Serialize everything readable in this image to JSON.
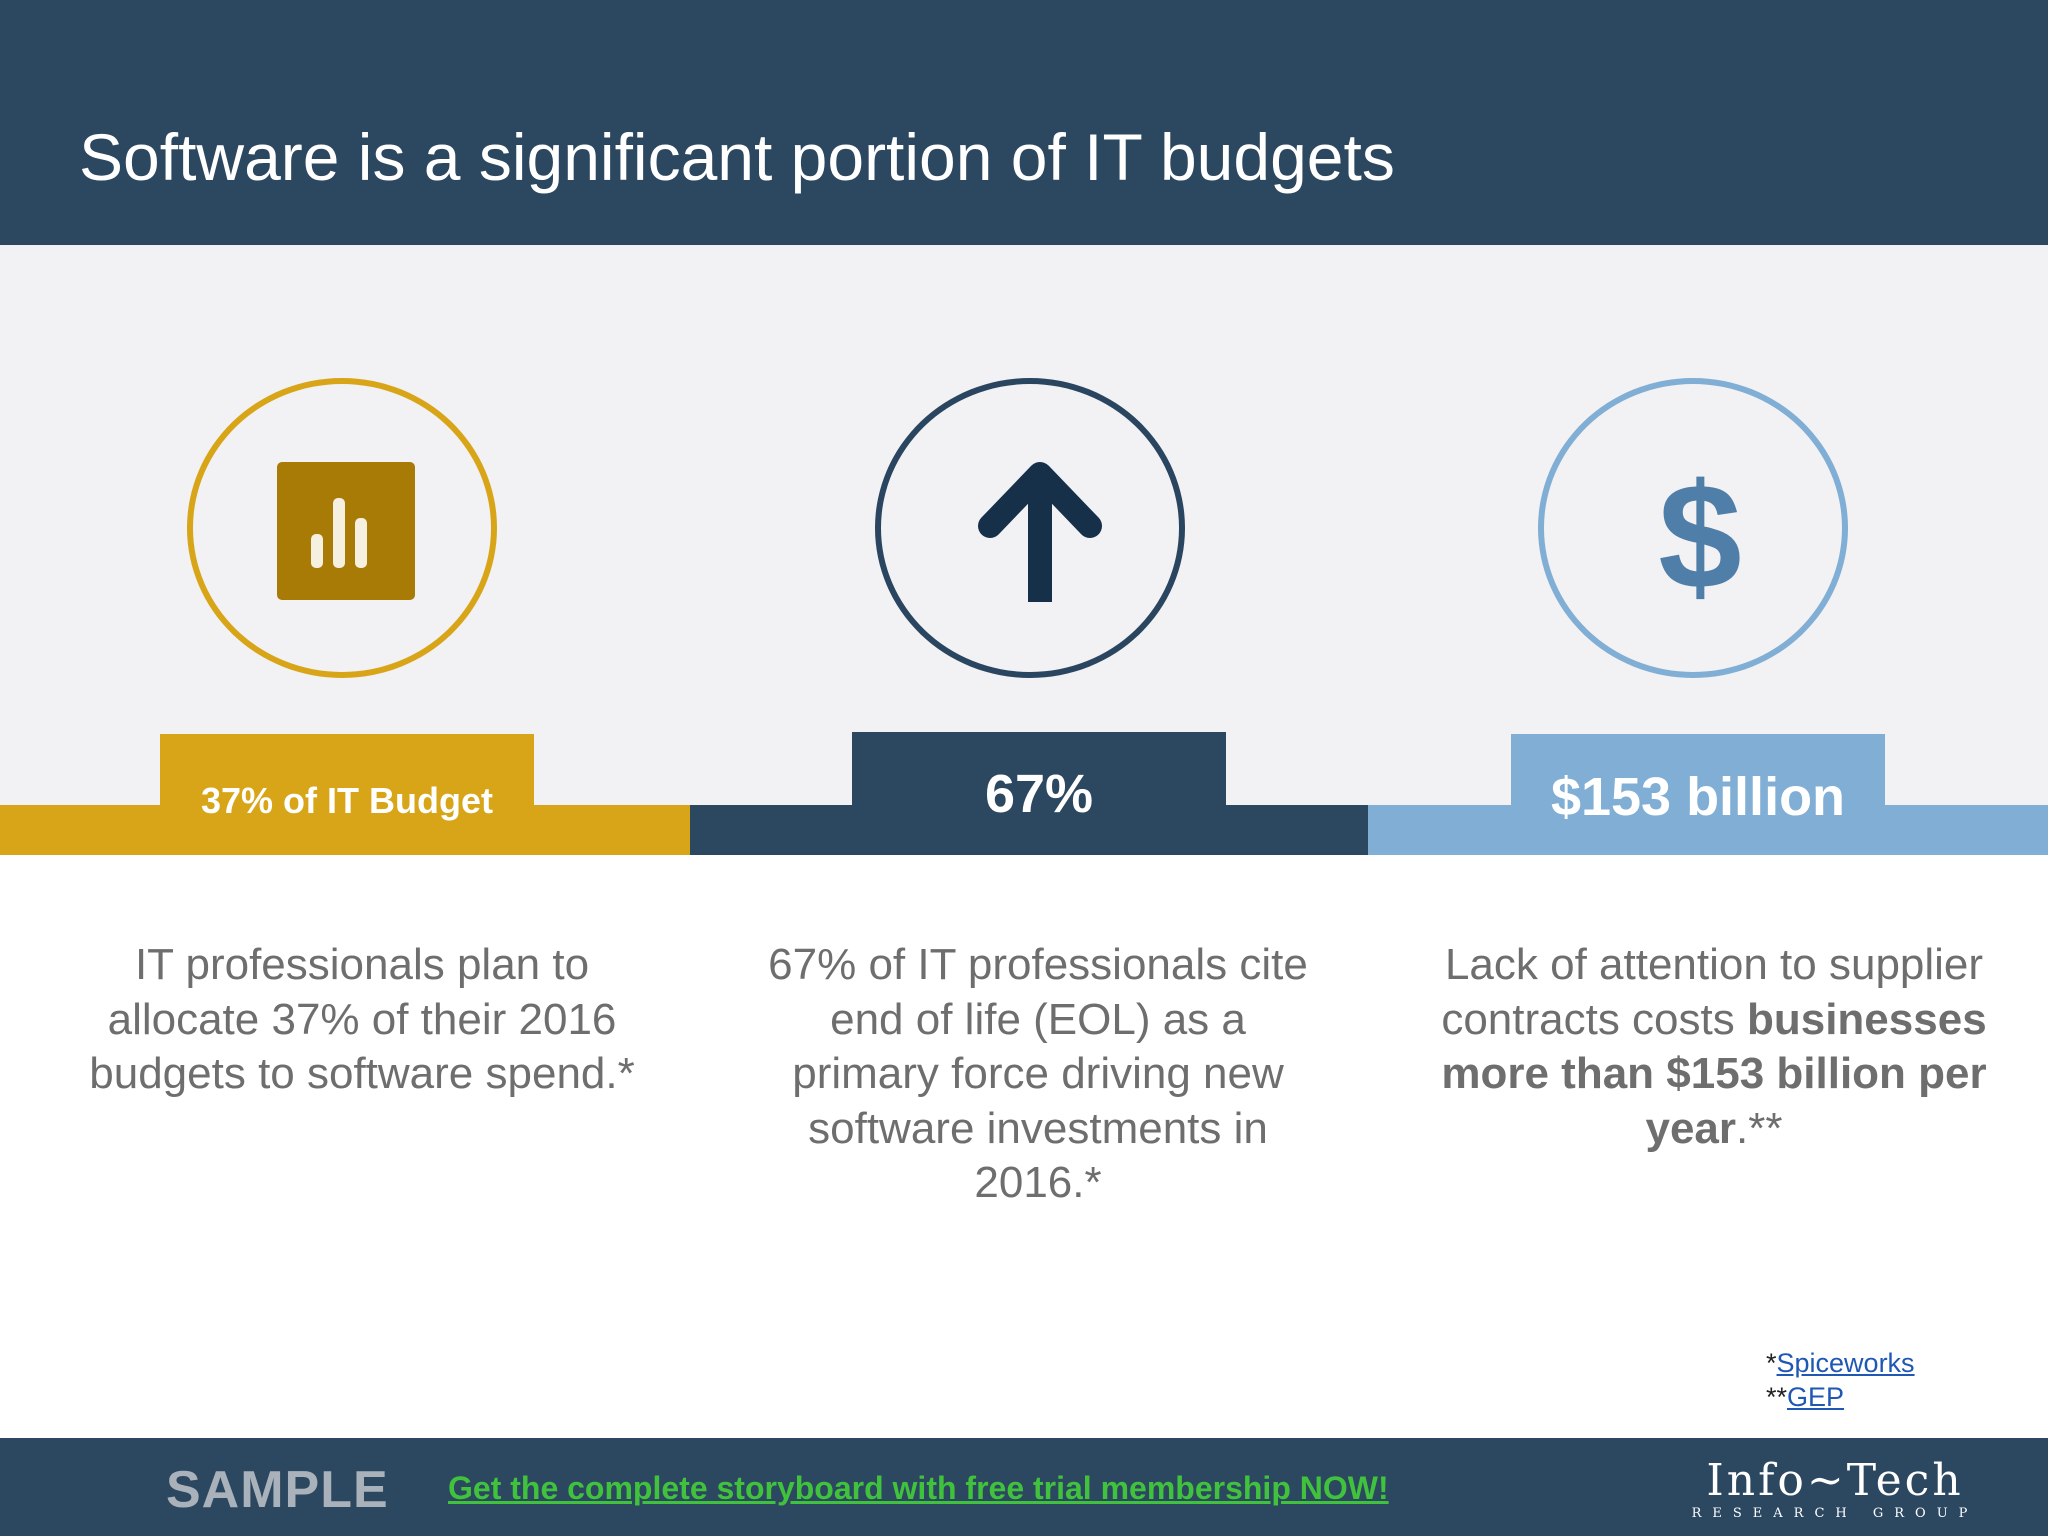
{
  "slide": {
    "title": "Software is a significant portion of IT budgets"
  },
  "stats": [
    {
      "icon": "bar-chart-icon",
      "label": "37% of IT Budget",
      "color": "#d8a518",
      "description": "IT professionals plan to allocate 37% of their 2016 budgets to software spend.*"
    },
    {
      "icon": "arrow-up-icon",
      "label": "67%",
      "color": "#2c4760",
      "description": "67% of IT professionals cite end of life (EOL) as a primary force driving new software investments in 2016.*"
    },
    {
      "icon": "dollar-icon",
      "label": "$153 billion",
      "color": "#80aed4",
      "description_plain": "Lack of attention to supplier contracts costs",
      "description_bold": "businesses more than $153 billion per year",
      "description_tail": ".**"
    }
  ],
  "references": [
    {
      "prefix": "*",
      "link": "Spiceworks"
    },
    {
      "prefix": "**",
      "link": "GEP"
    }
  ],
  "footer": {
    "sample": "SAMPLE",
    "cta": "Get the complete storyboard with free trial membership NOW!",
    "logo_main": "Info~Tech",
    "logo_sub": "RESEARCH GROUP"
  },
  "colors": {
    "header": "#2c4760",
    "band": "#f2f1f3",
    "gold": "#d8a518",
    "navy": "#2c4760",
    "light_blue": "#80aed4",
    "text_gray": "#6e6e6e",
    "cta_green": "#40c23c"
  }
}
